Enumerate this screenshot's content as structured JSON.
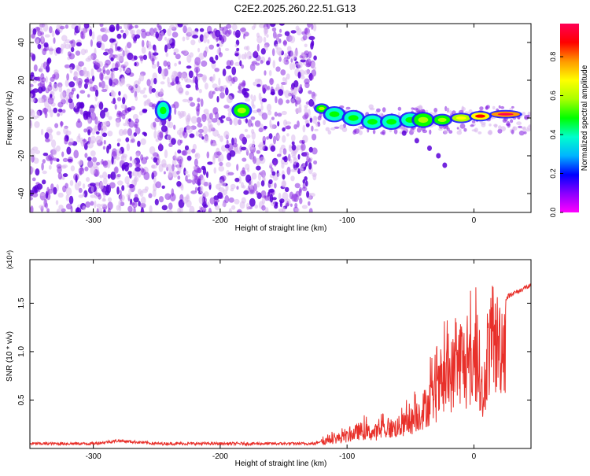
{
  "title": "C2E2.2025.260.22.51.G13",
  "colors": {
    "snr_line": "#e8302a",
    "scatter_low": "#d9b8ef",
    "scatter_mid": "#8a2be2",
    "scatter_dark": "#5a00d8"
  },
  "colorbar": {
    "label": "Normalized spectral amplitude",
    "range": [
      0.0,
      0.97
    ],
    "ticks": [
      0.0,
      0.2,
      0.4,
      0.6,
      0.8
    ],
    "tick_labels": [
      "0.0",
      "0.2",
      "0.4",
      "0.6",
      "0.8"
    ],
    "stops": [
      "#ff00ff",
      "#8a00ff",
      "#0000ff",
      "#00b4ff",
      "#00ffcc",
      "#00ff00",
      "#aaff00",
      "#ffff00",
      "#ff9900",
      "#ff0000",
      "#ff0055"
    ]
  },
  "chart_data": [
    {
      "type": "heatmap",
      "title": "C2E2.2025.260.22.51.G13",
      "xlabel": "Height of straight line (km)",
      "ylabel": "Frequency (Hz)",
      "xlim": [
        -350,
        45
      ],
      "ylim": [
        -50,
        50
      ],
      "x_ticks": [
        -300,
        -200,
        -100,
        0
      ],
      "x_tick_labels": [
        "-300",
        "-200",
        "-100",
        "0"
      ],
      "y_ticks": [
        -40,
        -20,
        0,
        20,
        40
      ],
      "y_tick_labels": [
        "-40",
        "-20",
        "0",
        "20",
        "40"
      ],
      "noise_region_x": [
        -350,
        -125
      ],
      "blobs": [
        {
          "x": -245,
          "y": 4,
          "w": 7,
          "h": 8,
          "amp": 0.45
        },
        {
          "x": -183,
          "y": 4,
          "w": 10,
          "h": 6,
          "amp": 0.55
        },
        {
          "x": -120,
          "y": 5,
          "w": 6,
          "h": 3,
          "amp": 0.6
        },
        {
          "x": -110,
          "y": 2,
          "w": 12,
          "h": 6,
          "amp": 0.45
        },
        {
          "x": -95,
          "y": 0,
          "w": 12,
          "h": 6,
          "amp": 0.5
        },
        {
          "x": -80,
          "y": -2,
          "w": 12,
          "h": 6,
          "amp": 0.45
        },
        {
          "x": -65,
          "y": -2,
          "w": 12,
          "h": 6,
          "amp": 0.5
        },
        {
          "x": -50,
          "y": -1,
          "w": 12,
          "h": 6,
          "amp": 0.45
        },
        {
          "x": -40,
          "y": -1,
          "w": 12,
          "h": 6,
          "amp": 0.55
        },
        {
          "x": -25,
          "y": -1,
          "w": 10,
          "h": 4,
          "amp": 0.6
        },
        {
          "x": -10,
          "y": 0,
          "w": 12,
          "h": 3,
          "amp": 0.7
        },
        {
          "x": 5,
          "y": 1,
          "w": 12,
          "h": 3,
          "amp": 0.85
        },
        {
          "x": 25,
          "y": 2,
          "w": 20,
          "h": 2,
          "amp": 0.95
        }
      ],
      "trail": [
        [
          -55,
          -8
        ],
        [
          -45,
          -12
        ],
        [
          -35,
          -16
        ],
        [
          -28,
          -20
        ],
        [
          -23,
          -25
        ]
      ]
    },
    {
      "type": "line",
      "xlabel": "Height of straight line (km)",
      "ylabel": "SNR (10 * v/v)",
      "y_multiplier": "(x10⁴)",
      "xlim": [
        -350,
        45
      ],
      "ylim": [
        0,
        1.95
      ],
      "x_ticks": [
        -300,
        -200,
        -100,
        0
      ],
      "x_tick_labels": [
        "-300",
        "-200",
        "-100",
        "0"
      ],
      "y_ticks": [
        0.5,
        1.0,
        1.5
      ],
      "y_tick_labels": [
        "0.5",
        "1.0",
        "1.5"
      ],
      "series": [
        {
          "name": "SNR",
          "x": [
            -350,
            -300,
            -280,
            -250,
            -200,
            -150,
            -125,
            -115,
            -100,
            -90,
            -80,
            -70,
            -60,
            -50,
            -40,
            -30,
            -20,
            -15,
            -10,
            -5,
            0,
            5,
            8,
            10,
            15,
            20,
            25,
            30,
            35,
            40,
            45
          ],
          "y": [
            0.05,
            0.05,
            0.08,
            0.05,
            0.05,
            0.05,
            0.05,
            0.12,
            0.17,
            0.25,
            0.22,
            0.27,
            0.3,
            0.38,
            0.55,
            0.75,
            1.0,
            1.1,
            1.3,
            1.05,
            1.3,
            1.1,
            0.5,
            1.35,
            1.45,
            1.5,
            1.55,
            1.6,
            1.62,
            1.66,
            1.68
          ]
        }
      ]
    }
  ]
}
